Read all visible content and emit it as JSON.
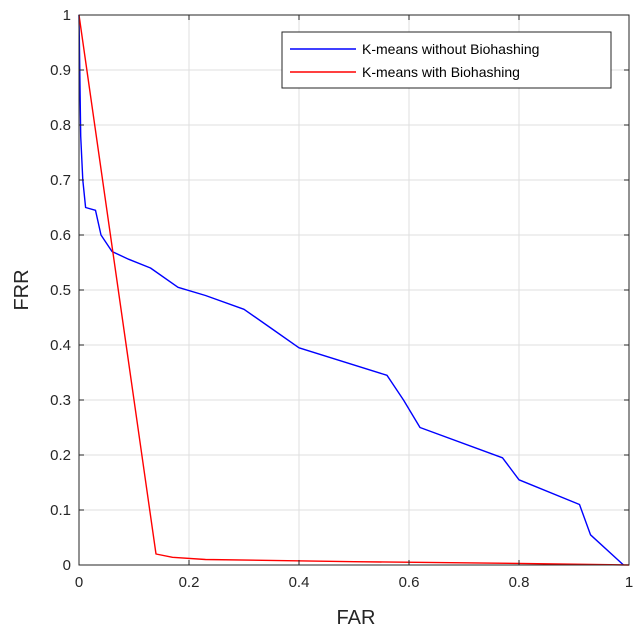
{
  "chart_data": {
    "type": "line",
    "xlabel": "FAR",
    "ylabel": "FRR",
    "xlim": [
      0,
      1
    ],
    "ylim": [
      0,
      1
    ],
    "xticks": [
      "0",
      "0.2",
      "0.4",
      "0.6",
      "0.8",
      "1"
    ],
    "yticks": [
      "0",
      "0.1",
      "0.2",
      "0.3",
      "0.4",
      "0.5",
      "0.6",
      "0.7",
      "0.8",
      "0.9",
      "1"
    ],
    "grid": true,
    "legend_position": "top-right",
    "series": [
      {
        "name": "K-means without Biohashing",
        "color": "#0000ff",
        "points": [
          [
            0.0,
            1.0
          ],
          [
            0.003,
            0.78
          ],
          [
            0.007,
            0.7
          ],
          [
            0.012,
            0.65
          ],
          [
            0.03,
            0.645
          ],
          [
            0.04,
            0.6
          ],
          [
            0.06,
            0.57
          ],
          [
            0.09,
            0.556
          ],
          [
            0.13,
            0.54
          ],
          [
            0.18,
            0.505
          ],
          [
            0.23,
            0.49
          ],
          [
            0.3,
            0.465
          ],
          [
            0.35,
            0.43
          ],
          [
            0.4,
            0.395
          ],
          [
            0.56,
            0.345
          ],
          [
            0.59,
            0.3
          ],
          [
            0.62,
            0.25
          ],
          [
            0.77,
            0.195
          ],
          [
            0.8,
            0.155
          ],
          [
            0.91,
            0.11
          ],
          [
            0.93,
            0.055
          ],
          [
            0.99,
            0.0
          ]
        ]
      },
      {
        "name": "K-means with Biohashing",
        "color": "#ff0000",
        "points": [
          [
            0.0,
            1.0
          ],
          [
            0.14,
            0.02
          ],
          [
            0.17,
            0.014
          ],
          [
            0.23,
            0.01
          ],
          [
            0.5,
            0.006
          ],
          [
            0.8,
            0.003
          ],
          [
            1.0,
            0.0
          ]
        ]
      }
    ]
  }
}
